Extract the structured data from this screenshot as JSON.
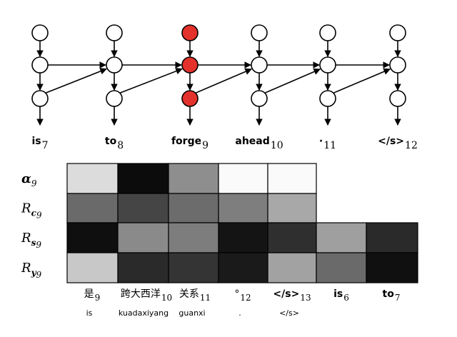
{
  "top": {
    "tokens": [
      {
        "text": "is",
        "sub": "7"
      },
      {
        "text": "to",
        "sub": "8"
      },
      {
        "text": "forge",
        "sub": "9"
      },
      {
        "text": "ahead",
        "sub": "10"
      },
      {
        "text": "·",
        "sub": "11"
      },
      {
        "text": "</s>",
        "sub": "12"
      }
    ],
    "highlight_column": 2,
    "highlight_color": "#e3322b"
  },
  "heatmap": {
    "rows": [
      {
        "main": "α",
        "sub": "9",
        "bold": true
      },
      {
        "main": "R",
        "submain": "c",
        "sub": "9"
      },
      {
        "main": "R",
        "submain": "s",
        "sub": "9"
      },
      {
        "main": "R",
        "submain": "y",
        "sub": "9"
      }
    ],
    "source_tokens": [
      {
        "text": "是",
        "sub": "9",
        "roman": "is",
        "bold": false
      },
      {
        "text": "跨大西洋",
        "sub": "10",
        "roman": "kuadaxiyang",
        "bold": false
      },
      {
        "text": "关系",
        "sub": "11",
        "roman": "guanxi",
        "bold": false
      },
      {
        "text": "°",
        "sub": "12",
        "roman": ".",
        "bold": false
      },
      {
        "text": "</s>",
        "sub": "13",
        "roman": "</s>",
        "bold": true
      },
      {
        "text": "is",
        "sub": "6",
        "roman": "",
        "bold": true
      },
      {
        "text": "to",
        "sub": "7",
        "roman": "",
        "bold": true
      }
    ],
    "cells": [
      [
        "#dcdcdc",
        "#0c0c0c",
        "#8e8e8e",
        "#fafafa",
        "#fafafa",
        null,
        null
      ],
      [
        "#6a6a6a",
        "#454545",
        "#6c6c6c",
        "#7e7e7e",
        "#a8a8a8",
        null,
        null
      ],
      [
        "#0f0f0f",
        "#8a8a8a",
        "#7d7d7d",
        "#141414",
        "#2f2f2f",
        "#9f9f9f",
        "#2a2a2a"
      ],
      [
        "#c8c8c8",
        "#2a2a2a",
        "#343434",
        "#1a1a1a",
        "#a2a2a2",
        "#6a6a6a",
        "#101010"
      ]
    ]
  }
}
